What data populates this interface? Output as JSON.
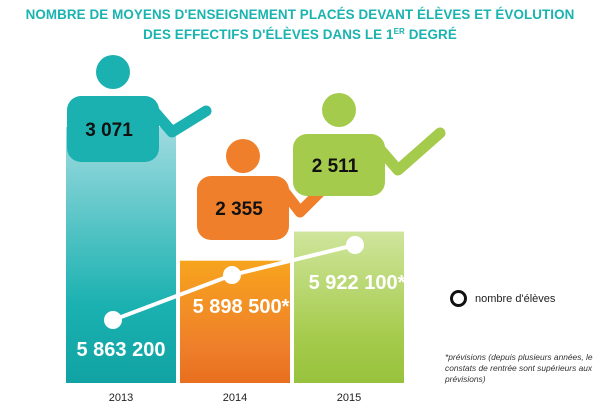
{
  "title": {
    "line1": "NOMBRE DE MOYENS D'ENSEIGNEMENT PLACÉS DEVANT ÉLÈVES ET ÉVOLUTION",
    "line2_start": "DES EFFECTIFS D'ÉLÈVES DANS LE 1",
    "line2_sup": "ER",
    "line2_end": " DEGRÉ"
  },
  "legend": {
    "label": "nombre d'élèves"
  },
  "note": "*prévisions (depuis plusieurs années, le constats de rentrée sont supérieurs aux prévisions)",
  "colors": {
    "title": "#19b3b0",
    "teal_light": "#9fdbe0",
    "teal": "#1ab1b0",
    "teal_dark": "#11a3a3",
    "orange_light": "#f7a41e",
    "orange": "#ef7f2a",
    "orange_dark": "#e86f1e",
    "green_light": "#cfe59c",
    "green": "#a5cb4c",
    "green_dark": "#98c23d",
    "line": "#ffffff"
  },
  "chart_data": {
    "type": "bar",
    "categories": [
      "2013",
      "2014",
      "2015"
    ],
    "series": [
      {
        "values": [
          3071,
          2355,
          2511
        ],
        "labels": [
          "3 071",
          "2 355",
          "2 511"
        ]
      },
      {
        "name": "nombre d'élèves",
        "values": [
          5863200,
          5898500,
          5922100
        ],
        "labels": [
          "5 863 200",
          "5 898 500*",
          "5 922 100*"
        ]
      }
    ]
  }
}
